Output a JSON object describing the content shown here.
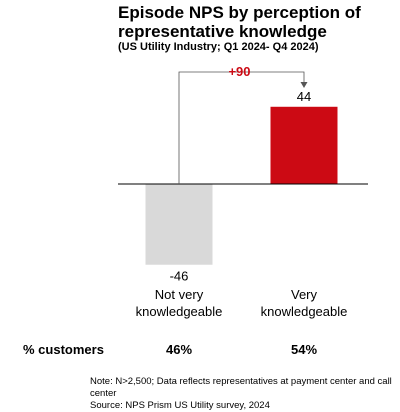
{
  "chart_data": {
    "type": "bar",
    "title": "Episode NPS by perception of representative knowledge",
    "subtitle": "(US Utility Industry; Q1 2024- Q4 2024)",
    "categories": [
      [
        "Not very",
        "knowledgeable"
      ],
      [
        "Very",
        "knowledgeable"
      ]
    ],
    "values": [
      -46,
      44
    ],
    "value_labels": [
      "-46",
      "44"
    ],
    "colors": [
      "#d9d9d9",
      "#cc0a14"
    ],
    "difference_label": "+90",
    "difference_color": "#cc0a14",
    "ylim": [
      -46,
      44
    ],
    "legend": "none",
    "grid": false,
    "row": {
      "label": "% customers",
      "values": [
        "46%",
        "54%"
      ]
    }
  },
  "notes": [
    "Note: N>2,500; Data reflects representatives at payment center and call center",
    "Source: NPS Prism US Utility survey, 2024"
  ]
}
